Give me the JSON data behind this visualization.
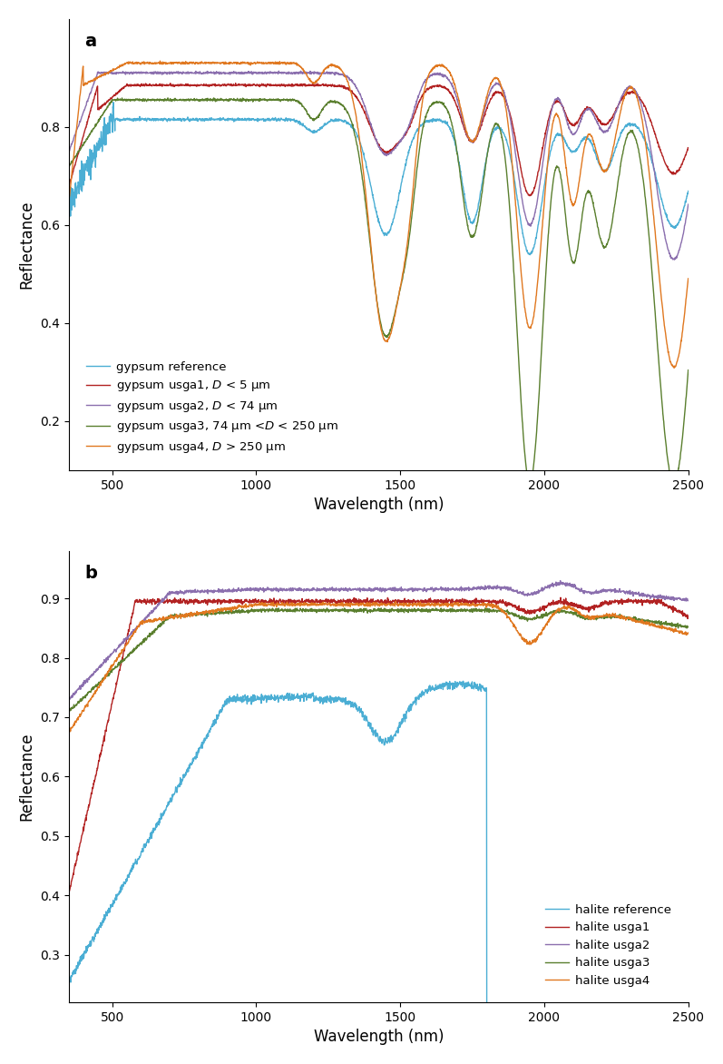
{
  "title_a": "a",
  "title_b": "b",
  "xlabel": "Wavelength (nm)",
  "ylabel": "Reflectance",
  "colors": {
    "reference": "#4BAED4",
    "usga1": "#B22222",
    "usga2": "#8B6FAE",
    "usga3": "#5A7F2E",
    "usga4": "#E07820"
  },
  "legend_a": [
    "gypsum reference",
    "gypsum usga1, $D$ < 5 μm",
    "gypsum usga2, $D$ < 74 μm",
    "gypsum usga3, 74 μm <$D$ < 250 μm",
    "gypsum usga4, $D$ > 250 μm"
  ],
  "legend_b": [
    "halite reference",
    "halite usga1",
    "halite usga2",
    "halite usga3",
    "halite usga4"
  ],
  "xlim": [
    350,
    2500
  ],
  "ylim_a": [
    0.1,
    1.02
  ],
  "ylim_b": [
    0.22,
    0.98
  ],
  "yticks_a": [
    0.2,
    0.4,
    0.6,
    0.8
  ],
  "yticks_b": [
    0.3,
    0.4,
    0.5,
    0.6,
    0.7,
    0.8,
    0.9
  ],
  "xticks": [
    500,
    1000,
    1500,
    2000,
    2500
  ]
}
